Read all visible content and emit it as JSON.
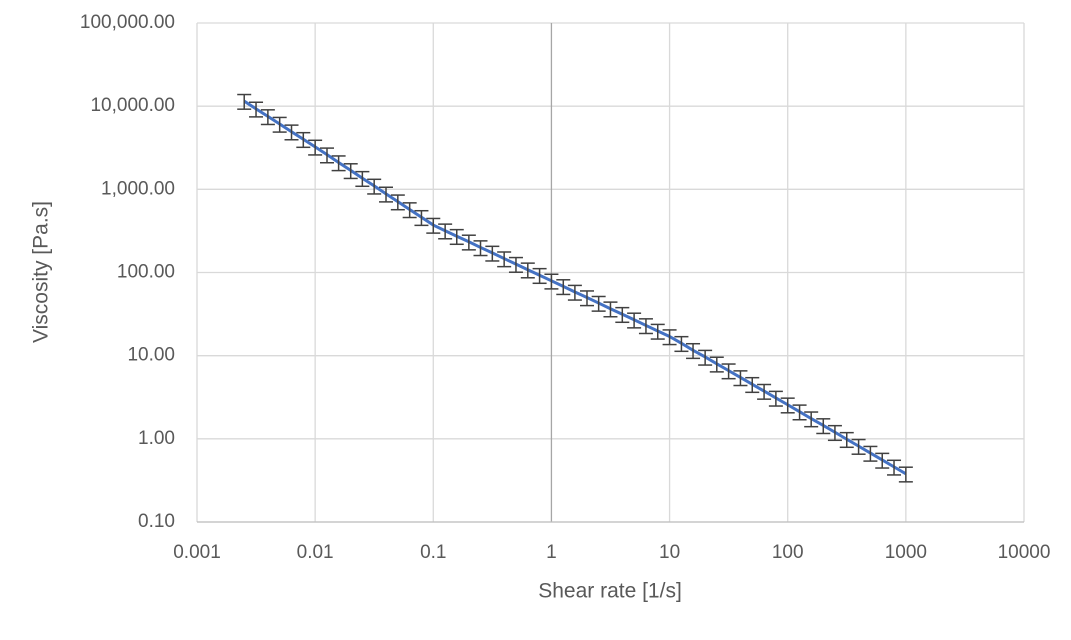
{
  "chart_data": {
    "type": "line",
    "x_label": "Shear rate [1/s]",
    "y_label": "Viscosity [Pa.s]",
    "x": [
      0.00251,
      0.00316,
      0.00398,
      0.00501,
      0.00631,
      0.00794,
      0.01,
      0.0126,
      0.0158,
      0.02,
      0.0251,
      0.0316,
      0.0398,
      0.0501,
      0.0631,
      0.0794,
      0.1,
      0.126,
      0.158,
      0.2,
      0.251,
      0.316,
      0.398,
      0.501,
      0.631,
      0.794,
      1,
      1.26,
      1.58,
      2,
      2.51,
      3.16,
      3.98,
      5.01,
      6.31,
      7.94,
      10,
      12.6,
      15.8,
      20,
      25.1,
      31.6,
      39.8,
      50.1,
      63.1,
      79.4,
      100,
      126,
      158,
      200,
      251,
      316,
      398,
      501,
      631,
      794,
      1000
    ],
    "series": [
      {
        "color": "#4472c4",
        "error_color": "#404040",
        "error_percent": 20,
        "values": [
          11500,
          9290,
          7530,
          6100,
          4930,
          4000,
          3240,
          2610,
          2100,
          1690,
          1360,
          1100,
          883,
          711,
          573,
          461,
          372,
          318,
          273,
          234,
          200,
          172,
          147,
          126,
          108,
          92.7,
          79.4,
          68.1,
          58.3,
          50.0,
          42.9,
          36.7,
          31.5,
          27.0,
          23.1,
          19.8,
          17.0,
          14.1,
          11.6,
          9.64,
          7.98,
          6.61,
          5.47,
          4.53,
          3.75,
          3.1,
          2.57,
          2.12,
          1.75,
          1.45,
          1.2,
          0.989,
          0.817,
          0.675,
          0.557,
          0.46,
          0.38
        ]
      }
    ],
    "xscale": "log",
    "yscale": "log",
    "xlim": [
      0.001,
      10000
    ],
    "xticks": [
      0.001,
      0.01,
      0.1,
      1,
      10,
      100,
      1000,
      10000
    ],
    "ylim": [
      0.1,
      100000
    ],
    "yticks": [
      {
        "value": 0.1,
        "label": "0.10"
      },
      {
        "value": 1,
        "label": "1.00"
      },
      {
        "value": 10,
        "label": "10.00"
      },
      {
        "value": 100,
        "label": "100.00"
      },
      {
        "value": 1000,
        "label": "1,000.00"
      },
      {
        "value": 10000,
        "label": "10,000.00"
      },
      {
        "value": 100000,
        "label": "100,000.00"
      }
    ],
    "grid": true,
    "y_axis_at": 1
  }
}
